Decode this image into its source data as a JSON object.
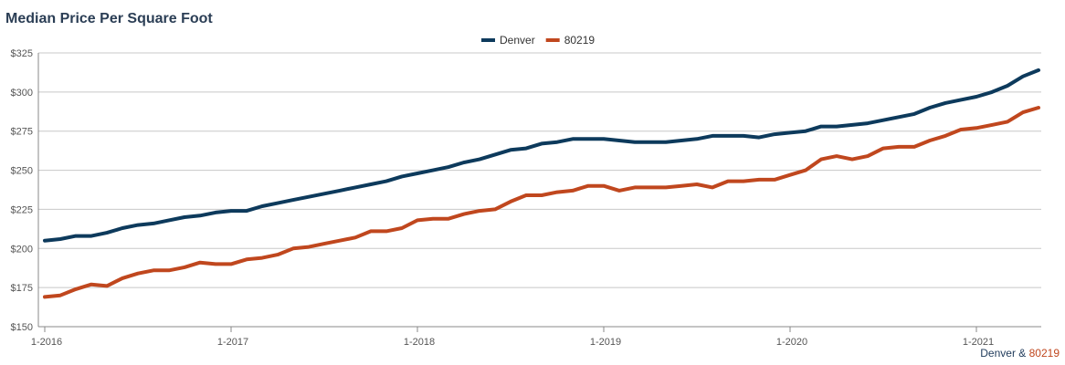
{
  "chart_data": {
    "type": "line",
    "title": "Median Price Per Square Foot",
    "xlabel": "",
    "ylabel": "",
    "x_tick_labels": [
      "1-2016",
      "1-2017",
      "1-2018",
      "1-2019",
      "1-2020",
      "1-2021"
    ],
    "y_tick_labels": [
      "$150",
      "$175",
      "$200",
      "$225",
      "$250",
      "$275",
      "$300",
      "$325"
    ],
    "y_ticks": [
      150,
      175,
      200,
      225,
      250,
      275,
      300,
      325
    ],
    "ylim": [
      150,
      325
    ],
    "x": [
      "1-2016",
      "2-2016",
      "3-2016",
      "4-2016",
      "5-2016",
      "6-2016",
      "7-2016",
      "8-2016",
      "9-2016",
      "10-2016",
      "11-2016",
      "12-2016",
      "1-2017",
      "2-2017",
      "3-2017",
      "4-2017",
      "5-2017",
      "6-2017",
      "7-2017",
      "8-2017",
      "9-2017",
      "10-2017",
      "11-2017",
      "12-2017",
      "1-2018",
      "2-2018",
      "3-2018",
      "4-2018",
      "5-2018",
      "6-2018",
      "7-2018",
      "8-2018",
      "9-2018",
      "10-2018",
      "11-2018",
      "12-2018",
      "1-2019",
      "2-2019",
      "3-2019",
      "4-2019",
      "5-2019",
      "6-2019",
      "7-2019",
      "8-2019",
      "9-2019",
      "10-2019",
      "11-2019",
      "12-2019",
      "1-2020",
      "2-2020",
      "3-2020",
      "4-2020",
      "5-2020",
      "6-2020",
      "7-2020",
      "8-2020",
      "9-2020",
      "10-2020",
      "11-2020",
      "12-2020",
      "1-2021",
      "2-2021",
      "3-2021",
      "4-2021",
      "5-2021"
    ],
    "grid": true,
    "legend_position": "top-center",
    "series": [
      {
        "name": "Denver",
        "color": "#0d3a5c",
        "values": [
          205,
          206,
          208,
          208,
          210,
          213,
          215,
          216,
          218,
          220,
          221,
          223,
          224,
          224,
          227,
          229,
          231,
          233,
          235,
          237,
          239,
          241,
          243,
          246,
          248,
          250,
          252,
          255,
          257,
          260,
          263,
          264,
          267,
          268,
          270,
          270,
          270,
          269,
          268,
          268,
          268,
          269,
          270,
          272,
          272,
          272,
          271,
          273,
          274,
          275,
          278,
          278,
          279,
          280,
          282,
          284,
          286,
          290,
          293,
          295,
          297,
          300,
          304,
          310,
          314
        ]
      },
      {
        "name": "80219",
        "color": "#c0471e",
        "values": [
          169,
          170,
          174,
          177,
          176,
          181,
          184,
          186,
          186,
          188,
          191,
          190,
          190,
          193,
          194,
          196,
          200,
          201,
          203,
          205,
          207,
          211,
          211,
          213,
          218,
          219,
          219,
          222,
          224,
          225,
          230,
          234,
          234,
          236,
          237,
          240,
          240,
          237,
          239,
          239,
          239,
          240,
          241,
          239,
          243,
          243,
          244,
          244,
          247,
          250,
          257,
          259,
          257,
          259,
          264,
          265,
          265,
          269,
          272,
          276,
          277,
          279,
          281,
          287,
          290
        ]
      }
    ],
    "source_note": {
      "prefix": "Denver",
      "connector": " & ",
      "highlight": "80219"
    }
  }
}
